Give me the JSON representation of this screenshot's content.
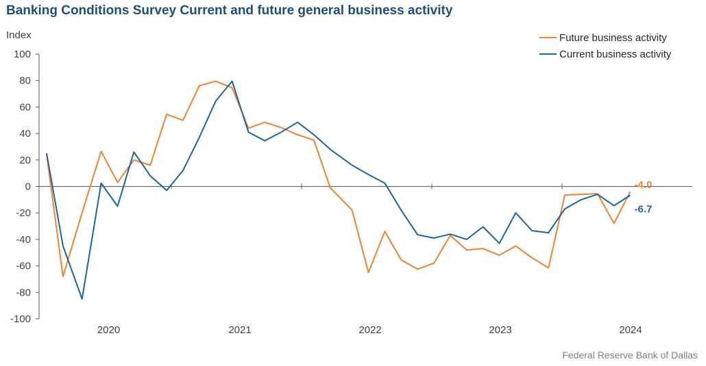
{
  "title": "Banking Conditions Survey Current and future general business activity",
  "source": "Federal Reserve Bank of Dallas",
  "colors": {
    "future": "#f0812e",
    "current": "#1a64a0",
    "title": "#1f4e79"
  },
  "chart_data": {
    "type": "line",
    "ylabel": "Index",
    "ylim": [
      -100,
      100
    ],
    "yticks": [
      100,
      80,
      60,
      40,
      20,
      0,
      -20,
      -40,
      -60,
      -80,
      -100
    ],
    "x_start": "2019 Q3",
    "x_end": "2024 Q2",
    "year_labels": [
      "2020",
      "2021",
      "2022",
      "2023",
      "2024"
    ],
    "x": [
      "2019 Q3",
      "2019 Q4",
      "2020 Q1",
      "2020 Q2",
      "2020 Q3",
      "2020 Q4",
      "2021 Q1",
      "2021 Q2",
      "2021 Q3",
      "2021 Q4",
      "2022 Q1",
      "2022 Q2",
      "2022 Q3",
      "2022 Q4",
      "2023 Q1",
      "2023 Q2",
      "2023 Q3",
      "2023 Q4",
      "2024 Q1",
      "2024 Q2"
    ],
    "legend_position": "top-right",
    "series": [
      {
        "name": "Future business activity",
        "color": "#f0812e",
        "points": [
          [
            0,
            24.5
          ],
          [
            0.3,
            -68
          ],
          [
            0.65,
            -20
          ],
          [
            1.0,
            26.5
          ],
          [
            1.3,
            3
          ],
          [
            1.6,
            20
          ],
          [
            1.9,
            16
          ],
          [
            2.2,
            54.5
          ],
          [
            2.5,
            50
          ],
          [
            2.8,
            76
          ],
          [
            3.1,
            79.5
          ],
          [
            3.4,
            74.5
          ],
          [
            3.7,
            44
          ],
          [
            4.0,
            48.5
          ],
          [
            4.3,
            44.5
          ],
          [
            4.6,
            39
          ],
          [
            4.9,
            35
          ],
          [
            5.2,
            -1
          ],
          [
            5.6,
            -18
          ],
          [
            5.9,
            -65
          ],
          [
            6.2,
            -34
          ],
          [
            6.5,
            -55.5
          ],
          [
            6.8,
            -62.5
          ],
          [
            7.1,
            -58
          ],
          [
            7.4,
            -37
          ],
          [
            7.7,
            -48
          ],
          [
            8.0,
            -47
          ],
          [
            8.3,
            -52
          ],
          [
            8.6,
            -45
          ],
          [
            8.9,
            -54
          ],
          [
            9.2,
            -61.5
          ],
          [
            9.5,
            -6.5
          ],
          [
            9.8,
            -6
          ],
          [
            10.1,
            -5.5
          ],
          [
            10.4,
            -28
          ],
          [
            10.7,
            -4
          ]
        ],
        "end_label": "-4.0"
      },
      {
        "name": "Current business activity",
        "color": "#1a64a0",
        "points": [
          [
            0,
            25
          ],
          [
            0.3,
            -45
          ],
          [
            0.65,
            -85
          ],
          [
            1.0,
            2.5
          ],
          [
            1.3,
            -15
          ],
          [
            1.6,
            26
          ],
          [
            1.9,
            8
          ],
          [
            2.2,
            -3
          ],
          [
            2.5,
            12
          ],
          [
            2.8,
            37
          ],
          [
            3.1,
            64.5
          ],
          [
            3.4,
            79.5
          ],
          [
            3.7,
            41
          ],
          [
            4.0,
            34.5
          ],
          [
            4.3,
            41
          ],
          [
            4.6,
            48.5
          ],
          [
            4.9,
            39
          ],
          [
            5.2,
            28
          ],
          [
            5.6,
            16
          ],
          [
            5.9,
            9
          ],
          [
            6.2,
            2.5
          ],
          [
            6.5,
            -18
          ],
          [
            6.8,
            -36.5
          ],
          [
            7.1,
            -39
          ],
          [
            7.4,
            -36
          ],
          [
            7.7,
            -40
          ],
          [
            8.0,
            -30.5
          ],
          [
            8.3,
            -43
          ],
          [
            8.6,
            -20
          ],
          [
            8.9,
            -33.5
          ],
          [
            9.2,
            -35
          ],
          [
            9.5,
            -17
          ],
          [
            9.8,
            -10
          ],
          [
            10.1,
            -6
          ],
          [
            10.4,
            -14.5
          ],
          [
            10.7,
            -6.7
          ]
        ],
        "end_label": "-6.7"
      }
    ]
  }
}
